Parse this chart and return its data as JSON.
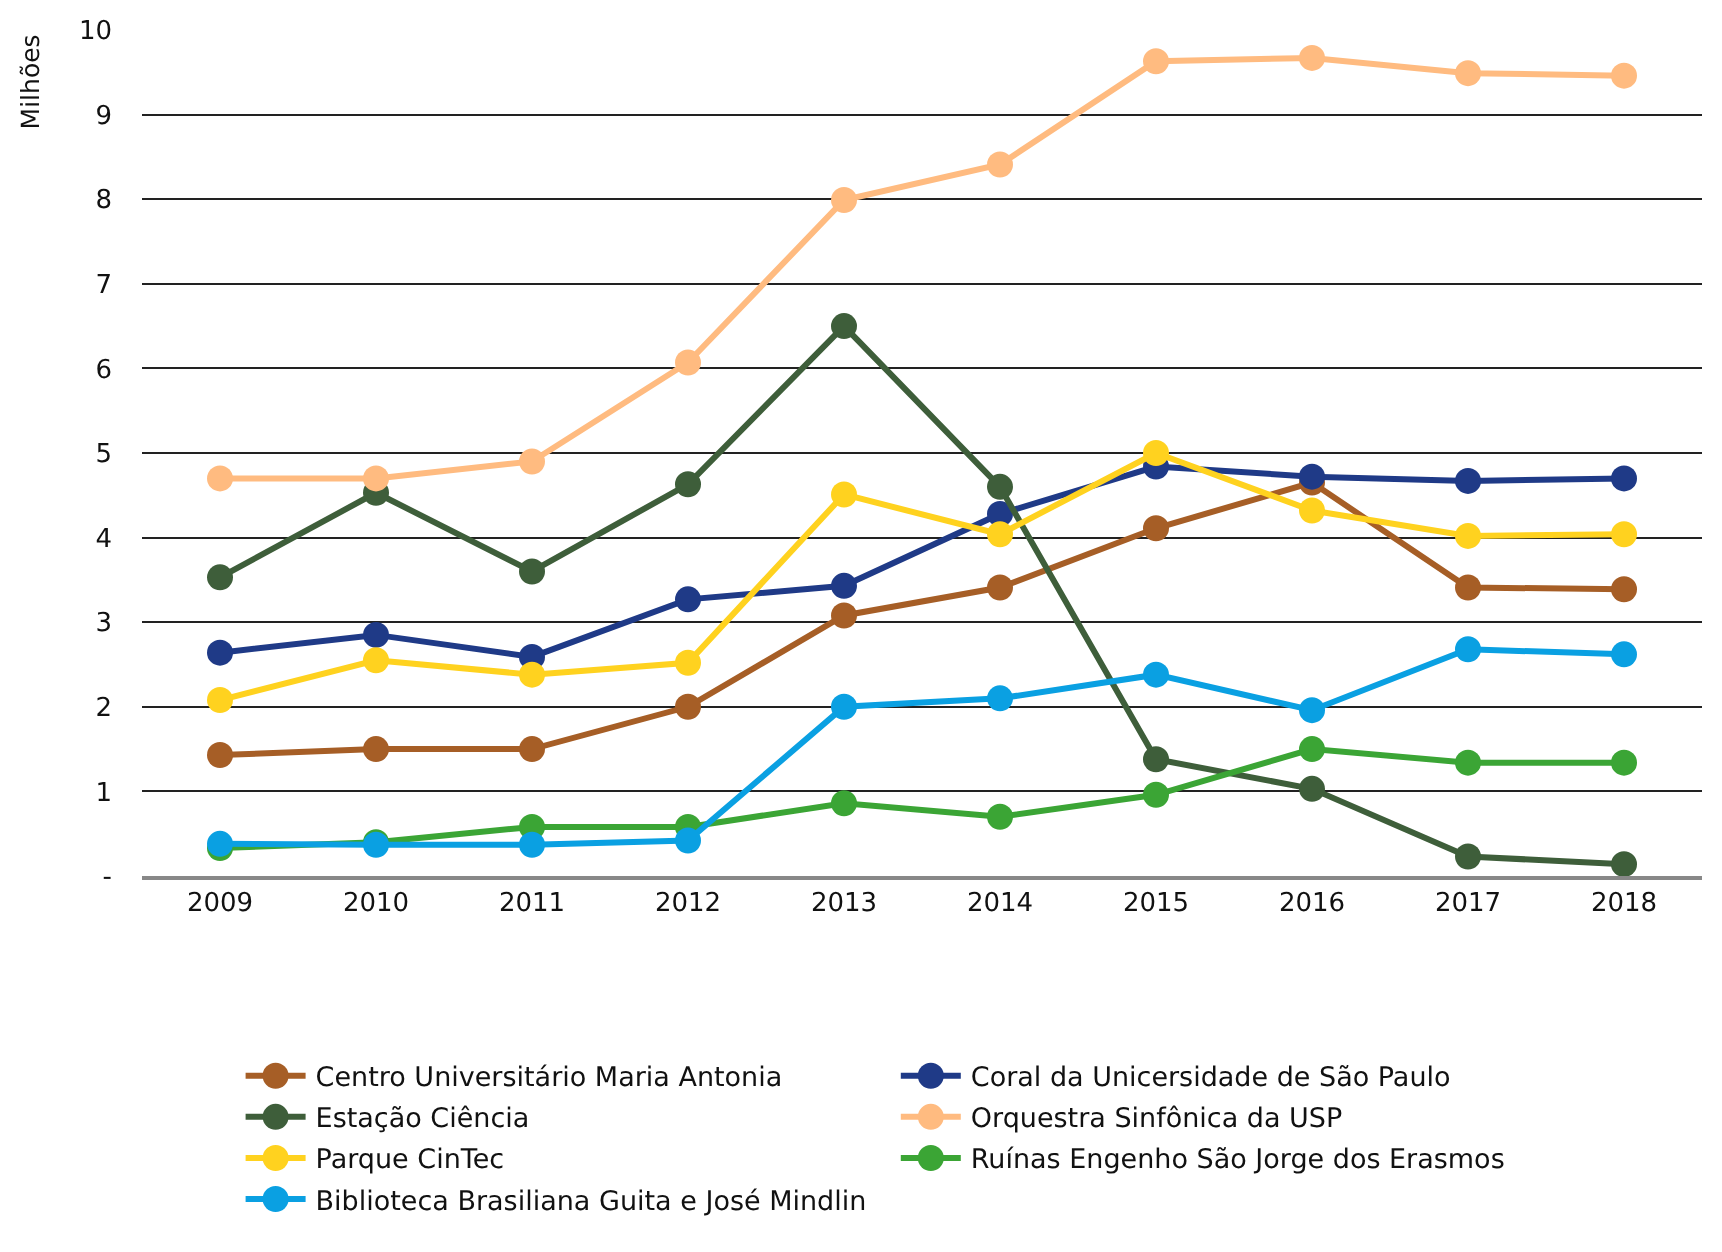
{
  "chart_data": {
    "type": "line",
    "ylabel": "Milhões",
    "categories": [
      "2009",
      "2010",
      "2011",
      "2012",
      "2013",
      "2014",
      "2015",
      "2016",
      "2017",
      "2018"
    ],
    "series": [
      {
        "name": "Centro Universitário Maria Antonia",
        "color": "#a65e26",
        "values": [
          1.43,
          1.5,
          1.5,
          2.0,
          3.08,
          3.41,
          4.11,
          4.65,
          3.41,
          3.39
        ]
      },
      {
        "name": "Coral da Unicersidade de São Paulo",
        "color": "#1f3a87",
        "values": [
          2.64,
          2.85,
          2.59,
          3.27,
          3.43,
          4.28,
          4.84,
          4.72,
          4.67,
          4.7
        ]
      },
      {
        "name": "Estação Ciência",
        "color": "#3e5e3a",
        "values": [
          3.53,
          4.53,
          3.6,
          4.63,
          6.5,
          4.6,
          1.38,
          1.03,
          0.23,
          0.14
        ]
      },
      {
        "name": "Orquestra Sinfônica da USP",
        "color": "#ffbb80",
        "values": [
          4.7,
          4.7,
          4.9,
          6.07,
          7.99,
          8.41,
          9.63,
          9.67,
          9.49,
          9.46
        ]
      },
      {
        "name": "Parque CinTec",
        "color": "#ffd21f",
        "values": [
          2.08,
          2.55,
          2.38,
          2.52,
          4.51,
          4.04,
          5.0,
          4.32,
          4.02,
          4.04
        ]
      },
      {
        "name": "Ruínas Engenho São Jorge dos Erasmos",
        "color": "#3ba535",
        "values": [
          0.33,
          0.4,
          0.58,
          0.58,
          0.86,
          0.7,
          0.96,
          1.5,
          1.34,
          1.34
        ]
      },
      {
        "name": "Biblioteca Brasiliana Guita e José Mindlin",
        "color": "#0aa0e2",
        "values": [
          0.38,
          0.37,
          0.37,
          0.42,
          2.0,
          2.1,
          2.38,
          1.96,
          2.68,
          2.62
        ]
      }
    ],
    "ylim": [
      0,
      10
    ],
    "yticks": [
      {
        "value": 0,
        "label": "-"
      },
      1,
      2,
      3,
      4,
      5,
      6,
      7,
      8,
      9,
      10
    ],
    "grid": "y",
    "legend": "bottom",
    "marker": "circle",
    "line_style": "solid"
  }
}
